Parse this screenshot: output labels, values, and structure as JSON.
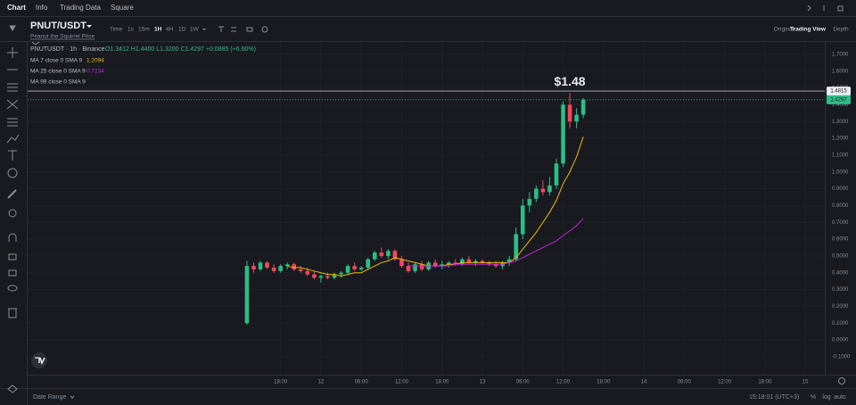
{
  "nav": {
    "tabs": [
      "Chart",
      "Info",
      "Trading Data",
      "Square"
    ]
  },
  "header": {
    "symbol": "PNUT/USDT",
    "subtitle": "Peanut the Squirrel Price",
    "intervals": [
      "Time",
      "1s",
      "15m",
      "1H",
      "4H",
      "1D",
      "1W"
    ],
    "views": [
      "Original",
      "Trading View",
      "Depth"
    ]
  },
  "legend": {
    "title": "PNUTUSDT · 1h · Binance",
    "ohlc": "O1.3412 H1.4400 L1.3200 C1.4297 +0.0885 (+6.60%)"
  },
  "footer": {
    "date_range": "Date Range",
    "clock": "15:18:01 (UTC+3)",
    "options": [
      "%",
      "log",
      "auto"
    ]
  },
  "chart_data": {
    "type": "candlestick",
    "annotation": "$1.48",
    "up_color": "#2ebd85",
    "down_color": "#f6465d",
    "grid": true,
    "x": [
      13,
      14,
      15,
      16,
      17,
      18,
      19,
      20,
      21,
      22,
      23,
      24,
      25,
      26,
      27,
      28,
      29,
      30,
      31,
      32,
      33,
      34,
      35,
      36,
      37,
      38,
      39,
      40,
      41,
      42,
      43,
      44,
      45,
      46,
      47,
      48,
      49,
      50,
      51,
      52,
      53,
      54,
      55,
      56,
      57,
      58,
      59,
      60,
      61,
      62,
      63
    ],
    "open": [
      0.1,
      0.44,
      0.42,
      0.46,
      0.43,
      0.41,
      0.44,
      0.45,
      0.42,
      0.41,
      0.39,
      0.37,
      0.38,
      0.37,
      0.39,
      0.4,
      0.44,
      0.42,
      0.43,
      0.48,
      0.52,
      0.5,
      0.53,
      0.48,
      0.44,
      0.41,
      0.45,
      0.42,
      0.46,
      0.44,
      0.45,
      0.46,
      0.45,
      0.48,
      0.46,
      0.47,
      0.46,
      0.45,
      0.44,
      0.46,
      0.48,
      0.63,
      0.8,
      0.84,
      0.9,
      0.88,
      0.92,
      1.05,
      1.4,
      1.3,
      1.3412
    ],
    "high": [
      0.47,
      0.46,
      0.47,
      0.47,
      0.45,
      0.45,
      0.46,
      0.46,
      0.44,
      0.43,
      0.41,
      0.39,
      0.4,
      0.4,
      0.41,
      0.45,
      0.46,
      0.44,
      0.49,
      0.53,
      0.55,
      0.54,
      0.54,
      0.5,
      0.46,
      0.46,
      0.47,
      0.47,
      0.48,
      0.47,
      0.47,
      0.48,
      0.49,
      0.5,
      0.48,
      0.48,
      0.47,
      0.47,
      0.47,
      0.5,
      0.67,
      0.84,
      0.88,
      0.92,
      0.95,
      0.97,
      1.08,
      1.42,
      1.47,
      1.38,
      1.44
    ],
    "low": [
      0.09,
      0.4,
      0.41,
      0.42,
      0.4,
      0.4,
      0.42,
      0.41,
      0.4,
      0.38,
      0.36,
      0.34,
      0.36,
      0.36,
      0.37,
      0.39,
      0.41,
      0.41,
      0.42,
      0.47,
      0.49,
      0.48,
      0.47,
      0.43,
      0.4,
      0.4,
      0.41,
      0.41,
      0.43,
      0.42,
      0.43,
      0.44,
      0.44,
      0.45,
      0.44,
      0.45,
      0.44,
      0.43,
      0.42,
      0.44,
      0.47,
      0.6,
      0.76,
      0.82,
      0.86,
      0.86,
      0.9,
      1.03,
      1.26,
      1.26,
      1.32
    ],
    "close": [
      0.44,
      0.42,
      0.46,
      0.43,
      0.41,
      0.44,
      0.45,
      0.42,
      0.41,
      0.39,
      0.37,
      0.38,
      0.37,
      0.39,
      0.4,
      0.44,
      0.42,
      0.43,
      0.48,
      0.52,
      0.5,
      0.53,
      0.48,
      0.44,
      0.41,
      0.45,
      0.42,
      0.46,
      0.44,
      0.45,
      0.46,
      0.45,
      0.48,
      0.46,
      0.47,
      0.46,
      0.45,
      0.44,
      0.46,
      0.48,
      0.63,
      0.8,
      0.84,
      0.9,
      0.88,
      0.92,
      1.05,
      1.4,
      1.3,
      1.34,
      1.4297
    ],
    "series": [
      {
        "name": "MA 7 close 0 SMA 9",
        "color": "#f0b90b",
        "x": [
          19,
          20,
          21,
          22,
          23,
          24,
          25,
          26,
          27,
          28,
          29,
          30,
          31,
          32,
          33,
          34,
          35,
          36,
          37,
          38,
          39,
          40,
          41,
          42,
          43,
          44,
          45,
          46,
          47,
          48,
          49,
          50,
          51,
          52,
          53,
          54,
          55,
          56,
          57,
          58,
          59,
          60,
          61,
          62,
          63
        ],
        "values": [
          0.44,
          0.43,
          0.43,
          0.42,
          0.41,
          0.4,
          0.39,
          0.39,
          0.38,
          0.39,
          0.4,
          0.4,
          0.42,
          0.44,
          0.46,
          0.47,
          0.49,
          0.48,
          0.47,
          0.46,
          0.45,
          0.44,
          0.44,
          0.44,
          0.45,
          0.45,
          0.46,
          0.46,
          0.46,
          0.46,
          0.46,
          0.46,
          0.46,
          0.46,
          0.49,
          0.54,
          0.59,
          0.64,
          0.7,
          0.76,
          0.83,
          0.93,
          1.0,
          1.09,
          1.2094
        ]
      },
      {
        "name": "MA 25 close 0 SMA 9",
        "color": "#c026d3",
        "x": [
          37,
          38,
          39,
          40,
          41,
          42,
          43,
          44,
          45,
          46,
          47,
          48,
          49,
          50,
          51,
          52,
          53,
          54,
          55,
          56,
          57,
          58,
          59,
          60,
          61,
          62,
          63
        ],
        "values": [
          0.44,
          0.44,
          0.44,
          0.44,
          0.44,
          0.44,
          0.44,
          0.45,
          0.45,
          0.45,
          0.45,
          0.45,
          0.45,
          0.45,
          0.45,
          0.46,
          0.47,
          0.49,
          0.51,
          0.53,
          0.55,
          0.57,
          0.59,
          0.62,
          0.65,
          0.68,
          0.7234
        ]
      },
      {
        "name": "MA 99 close 0 SMA 9",
        "color": "#8b5cf6"
      }
    ],
    "price_lines": [
      {
        "value": 1.4815,
        "color": "#b7bdc6"
      },
      {
        "value": 1.4297,
        "color": "#2ebd85"
      }
    ],
    "xlim": [
      -19.6,
      98.9
    ],
    "xticks": [
      {
        "value": 18,
        "label": "18:00"
      },
      {
        "value": 24,
        "label": "12"
      },
      {
        "value": 30,
        "label": "06:00"
      },
      {
        "value": 36,
        "label": "12:00"
      },
      {
        "value": 42,
        "label": "18:00"
      },
      {
        "value": 48,
        "label": "13"
      },
      {
        "value": 54,
        "label": "06:00"
      },
      {
        "value": 60,
        "label": "12:00"
      },
      {
        "value": 66,
        "label": "18:00"
      },
      {
        "value": 72,
        "label": "14"
      },
      {
        "value": 78,
        "label": "06:00"
      },
      {
        "value": 84,
        "label": "12:00"
      },
      {
        "value": 90,
        "label": "18:00"
      },
      {
        "value": 96,
        "label": "15"
      }
    ],
    "ylim": [
      -0.207,
      1.774
    ],
    "yticks": [
      {
        "value": -0.1,
        "label": "-0.1000"
      },
      {
        "value": 0,
        "label": "0.0000"
      },
      {
        "value": 0.1,
        "label": "0.1000"
      },
      {
        "value": 0.2,
        "label": "0.2000"
      },
      {
        "value": 0.3,
        "label": "0.3000"
      },
      {
        "value": 0.4,
        "label": "0.4000"
      },
      {
        "value": 0.5,
        "label": "0.5000"
      },
      {
        "value": 0.6,
        "label": "0.6000"
      },
      {
        "value": 0.7,
        "label": "0.7000"
      },
      {
        "value": 0.8,
        "label": "0.8000"
      },
      {
        "value": 0.9,
        "label": "0.9000"
      },
      {
        "value": 1.0,
        "label": "1.0000"
      },
      {
        "value": 1.1,
        "label": "1.1000"
      },
      {
        "value": 1.2,
        "label": "1.2000"
      },
      {
        "value": 1.3,
        "label": "1.3000"
      },
      {
        "value": 1.4,
        "label": "1.4000"
      },
      {
        "value": 1.5,
        "label": "1.5000"
      },
      {
        "value": 1.6,
        "label": "1.6000"
      },
      {
        "value": 1.7,
        "label": "1.7000"
      }
    ]
  }
}
